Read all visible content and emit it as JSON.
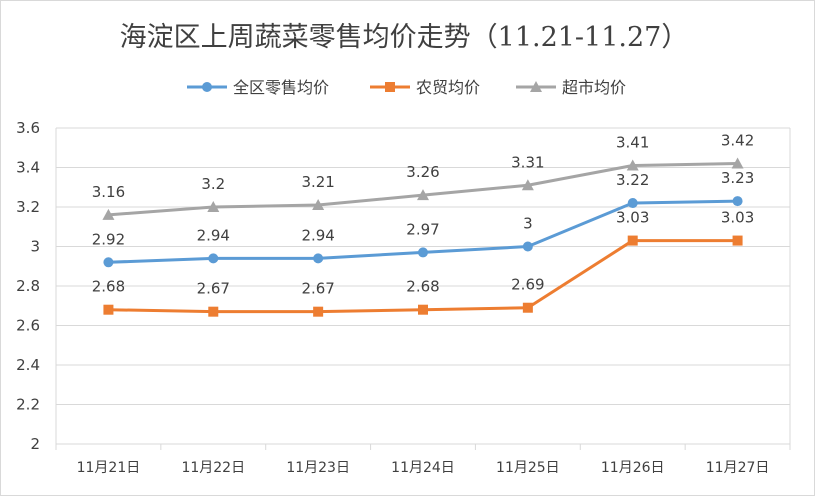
{
  "chart_data": {
    "type": "line",
    "title": "海淀区上周蔬菜零售均价走势（11.21-11.27）",
    "categories": [
      "11月21日",
      "11月22日",
      "11月23日",
      "11月24日",
      "11月25日",
      "11月26日",
      "11月27日"
    ],
    "ylim": [
      2,
      3.6
    ],
    "yticks": [
      "2",
      "2.2",
      "2.4",
      "2.6",
      "2.8",
      "3",
      "3.2",
      "3.4",
      "3.6"
    ],
    "grid": true,
    "legend_position": "top",
    "series": [
      {
        "name": "全区零售均价",
        "color": "#5b9bd5",
        "marker": "circle",
        "values": [
          2.92,
          2.94,
          2.94,
          2.97,
          3,
          3.22,
          3.23
        ],
        "labels": [
          "2.92",
          "2.94",
          "2.94",
          "2.97",
          "3",
          "3.22",
          "3.23"
        ]
      },
      {
        "name": "农贸均价",
        "color": "#ed7d31",
        "marker": "square",
        "values": [
          2.68,
          2.67,
          2.67,
          2.68,
          2.69,
          3.03,
          3.03
        ],
        "labels": [
          "2.68",
          "2.67",
          "2.67",
          "2.68",
          "2.69",
          "3.03",
          "3.03"
        ]
      },
      {
        "name": "超市均价",
        "color": "#a5a5a5",
        "marker": "triangle",
        "values": [
          3.16,
          3.2,
          3.21,
          3.26,
          3.31,
          3.41,
          3.42
        ],
        "labels": [
          "3.16",
          "3.2",
          "3.21",
          "3.26",
          "3.31",
          "3.41",
          "3.42"
        ]
      }
    ]
  }
}
